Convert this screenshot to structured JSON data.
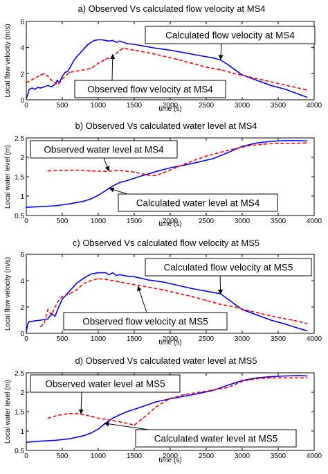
{
  "chart_data": [
    {
      "type": "line",
      "title": "a)  Observed  Vs calculated flow velocity at MS4",
      "xlabel": "time (s)",
      "ylabel": "Local flow velocity (m/s)",
      "xlim": [
        0,
        4000
      ],
      "ylim": [
        0,
        6
      ],
      "xticks": [
        "0",
        "500",
        "1000",
        "1500",
        "2000",
        "2500",
        "3000",
        "3500",
        "4000"
      ],
      "yticks": [
        "0",
        "2",
        "4",
        "6"
      ],
      "series": [
        {
          "name": "Calculated flow velocity at MS4",
          "color": "#0000ff",
          "style": "solid",
          "x": [
            0,
            20,
            40,
            80,
            120,
            160,
            200,
            250,
            300,
            350,
            400,
            430,
            460,
            500,
            540,
            580,
            620,
            660,
            700,
            750,
            800,
            850,
            900,
            950,
            1000,
            1050,
            1100,
            1150,
            1200,
            1250,
            1300,
            1400,
            1500,
            1600,
            1800,
            2000,
            2200,
            2400,
            2600,
            2700,
            2800,
            2900,
            3000,
            3200,
            3400,
            3600,
            3800,
            3900
          ],
          "y": [
            0.1,
            0.4,
            0.8,
            0.9,
            0.8,
            0.95,
            0.9,
            1.0,
            1.1,
            1.0,
            1.2,
            1.5,
            1.3,
            1.8,
            2.1,
            2.2,
            2.6,
            3.0,
            3.3,
            3.6,
            3.9,
            4.2,
            4.4,
            4.55,
            4.6,
            4.6,
            4.55,
            4.5,
            4.55,
            4.4,
            4.5,
            4.3,
            4.25,
            4.15,
            3.95,
            3.8,
            3.6,
            3.4,
            3.2,
            3.05,
            2.7,
            2.3,
            1.9,
            1.5,
            1.1,
            0.8,
            0.4,
            0.2
          ]
        },
        {
          "name": "Observed flow velocity at MS4",
          "color": "#ff0000",
          "style": "dashed",
          "x": [
            0,
            100,
            200,
            250,
            300,
            350,
            400,
            450,
            500,
            600,
            700,
            800,
            900,
            950,
            1000,
            1100,
            1200,
            1300,
            1350,
            1400,
            1500,
            1700,
            1900,
            2100,
            2300,
            2500,
            2700,
            2900,
            3100,
            3300,
            3500,
            3700,
            3900
          ],
          "y": [
            1.3,
            1.6,
            1.9,
            2.0,
            1.8,
            1.5,
            1.3,
            1.2,
            1.6,
            2.1,
            2.2,
            2.3,
            2.4,
            2.6,
            2.8,
            3.1,
            3.3,
            3.8,
            3.95,
            3.9,
            3.8,
            3.6,
            3.35,
            3.1,
            2.8,
            2.5,
            2.3,
            2.0,
            1.75,
            1.5,
            1.25,
            1.0,
            0.75
          ]
        }
      ],
      "annotations": [
        {
          "text": "Calculated flow velocity at MS4",
          "target_x": 2700,
          "target_y": 3.05
        },
        {
          "text": "Observed flow velocity at MS4",
          "target_x": 1200,
          "target_y": 3.5
        }
      ]
    },
    {
      "type": "line",
      "title": "b) Observed  Vs calculated water level at MS4",
      "xlabel": "time (s)",
      "ylabel": "Local water level (m)",
      "xlim": [
        0,
        4000
      ],
      "ylim": [
        0.5,
        2.5
      ],
      "xticks": [
        "0",
        "500",
        "1000",
        "1500",
        "2000",
        "2500",
        "3000",
        "3500",
        "4000"
      ],
      "yticks": [
        "0.5",
        "1",
        "1.5",
        "2",
        "2.5"
      ],
      "series": [
        {
          "name": "Calculated water level at MS4",
          "color": "#0000ff",
          "style": "solid",
          "x": [
            0,
            200,
            400,
            600,
            800,
            900,
            1000,
            1050,
            1100,
            1150,
            1200,
            1300,
            1400,
            1600,
            1800,
            2000,
            2200,
            2400,
            2600,
            2800,
            3000,
            3200,
            3400,
            3600,
            3800,
            3900
          ],
          "y": [
            0.71,
            0.73,
            0.75,
            0.8,
            0.87,
            0.93,
            1.02,
            1.08,
            1.14,
            1.2,
            1.26,
            1.35,
            1.4,
            1.52,
            1.63,
            1.73,
            1.8,
            1.88,
            1.97,
            2.12,
            2.28,
            2.37,
            2.41,
            2.43,
            2.43,
            2.42
          ]
        },
        {
          "name": "Observed water level at MS4",
          "color": "#ff0000",
          "style": "dashed",
          "x": [
            300,
            500,
            700,
            900,
            1100,
            1300,
            1500,
            1700,
            1800,
            1900,
            2100,
            2300,
            2500,
            2700,
            2900,
            3100,
            3300,
            3500,
            3700,
            3900
          ],
          "y": [
            1.65,
            1.66,
            1.67,
            1.65,
            1.64,
            1.66,
            1.62,
            1.54,
            1.53,
            1.6,
            1.75,
            1.9,
            2.03,
            2.13,
            2.22,
            2.3,
            2.34,
            2.36,
            2.36,
            2.37
          ]
        }
      ],
      "annotations": [
        {
          "text": "Observed water level at MS4",
          "target_x": 1150,
          "target_y": 1.64
        },
        {
          "text": "Calculated water level at MS4",
          "target_x": 1150,
          "target_y": 1.2
        }
      ]
    },
    {
      "type": "line",
      "title": "c) Observed  Vs calculated flow velocity at MS5",
      "xlabel": "time (s)",
      "ylabel": "Local flow velocity (m/s)",
      "xlim": [
        0,
        4000
      ],
      "ylim": [
        0,
        6
      ],
      "xticks": [
        "0",
        "500",
        "1000",
        "1500",
        "2000",
        "2500",
        "3000",
        "3500",
        "4000"
      ],
      "yticks": [
        "0",
        "2",
        "4",
        "6"
      ],
      "series": [
        {
          "name": "Calculated flow velocity at MS5",
          "color": "#0000ff",
          "style": "solid",
          "x": [
            0,
            20,
            40,
            80,
            120,
            200,
            300,
            350,
            400,
            450,
            500,
            550,
            600,
            700,
            800,
            900,
            1000,
            1100,
            1150,
            1200,
            1250,
            1300,
            1400,
            1500,
            1700,
            1900,
            2100,
            2300,
            2500,
            2700,
            2800,
            2900,
            3000,
            3200,
            3400,
            3600,
            3800,
            3900
          ],
          "y": [
            0.1,
            0.7,
            0.9,
            0.9,
            0.95,
            1.0,
            1.1,
            1.5,
            1.3,
            2.0,
            2.6,
            2.9,
            3.2,
            3.8,
            4.2,
            4.5,
            4.6,
            4.6,
            4.45,
            4.6,
            4.4,
            4.45,
            4.35,
            4.3,
            4.05,
            3.9,
            3.65,
            3.4,
            3.2,
            3.0,
            2.6,
            2.2,
            1.8,
            1.4,
            1.0,
            0.7,
            0.35,
            0.2
          ]
        },
        {
          "name": "Observed flow velocity at MS5",
          "color": "#ff0000",
          "style": "dashed",
          "x": [
            200,
            250,
            300,
            350,
            400,
            450,
            500,
            600,
            700,
            800,
            900,
            1000,
            1100,
            1200,
            1300,
            1500,
            1700,
            1900,
            2100,
            2300,
            2500,
            2700,
            2900,
            3100,
            3300,
            3500,
            3700,
            3900
          ],
          "y": [
            0.5,
            0.8,
            1.8,
            1.4,
            2.0,
            2.5,
            2.8,
            3.0,
            3.3,
            3.8,
            4.0,
            4.15,
            4.1,
            4.0,
            3.9,
            3.7,
            3.5,
            3.3,
            3.05,
            2.8,
            2.5,
            2.2,
            2.0,
            1.7,
            1.45,
            1.2,
            1.0,
            0.75
          ]
        }
      ],
      "annotations": [
        {
          "text": "Calculated flow velocity at MS5",
          "target_x": 2700,
          "target_y": 2.95
        },
        {
          "text": "Observed flow velocity at MS5",
          "target_x": 1550,
          "target_y": 3.6
        }
      ]
    },
    {
      "type": "line",
      "title": "d) Observed  Vs calculated water level at MS5",
      "xlabel": "time (s)",
      "ylabel": "Local water level (m)",
      "xlim": [
        0,
        4000
      ],
      "ylim": [
        0.5,
        2.5
      ],
      "xticks": [
        "0",
        "500",
        "1000",
        "1500",
        "2000",
        "2500",
        "3000",
        "3500",
        "4000"
      ],
      "yticks": [
        "0.5",
        "1",
        "1.5",
        "2",
        "2.5"
      ],
      "series": [
        {
          "name": "Calculated water level at MS5",
          "color": "#0000ff",
          "style": "solid",
          "x": [
            0,
            200,
            400,
            600,
            800,
            900,
            1000,
            1100,
            1200,
            1300,
            1400,
            1600,
            1800,
            2000,
            2200,
            2400,
            2600,
            2800,
            3000,
            3200,
            3400,
            3600,
            3800,
            3900
          ],
          "y": [
            0.71,
            0.74,
            0.76,
            0.8,
            0.88,
            0.95,
            1.05,
            1.2,
            1.33,
            1.42,
            1.5,
            1.62,
            1.75,
            1.83,
            1.9,
            1.97,
            2.05,
            2.18,
            2.3,
            2.37,
            2.4,
            2.42,
            2.43,
            2.42
          ]
        },
        {
          "name": "Observed water level at MS5",
          "color": "#ff0000",
          "style": "dashed",
          "x": [
            300,
            450,
            600,
            700,
            800,
            900,
            1000,
            1200,
            1400,
            1500,
            1600,
            1700,
            1800,
            2000,
            2200,
            2400,
            2600,
            2800,
            3000,
            3200,
            3400,
            3600,
            3900
          ],
          "y": [
            1.33,
            1.41,
            1.45,
            1.45,
            1.42,
            1.38,
            1.33,
            1.27,
            1.2,
            1.15,
            1.3,
            1.45,
            1.62,
            1.84,
            1.94,
            2.0,
            2.06,
            2.12,
            2.28,
            2.35,
            2.37,
            2.37,
            2.37
          ]
        }
      ],
      "annotations": [
        {
          "text": "Observed water level at MS5",
          "target_x": 760,
          "target_y": 1.43
        },
        {
          "text": "Calculated water level at MS5",
          "target_x": 1080,
          "target_y": 1.2
        }
      ]
    }
  ]
}
